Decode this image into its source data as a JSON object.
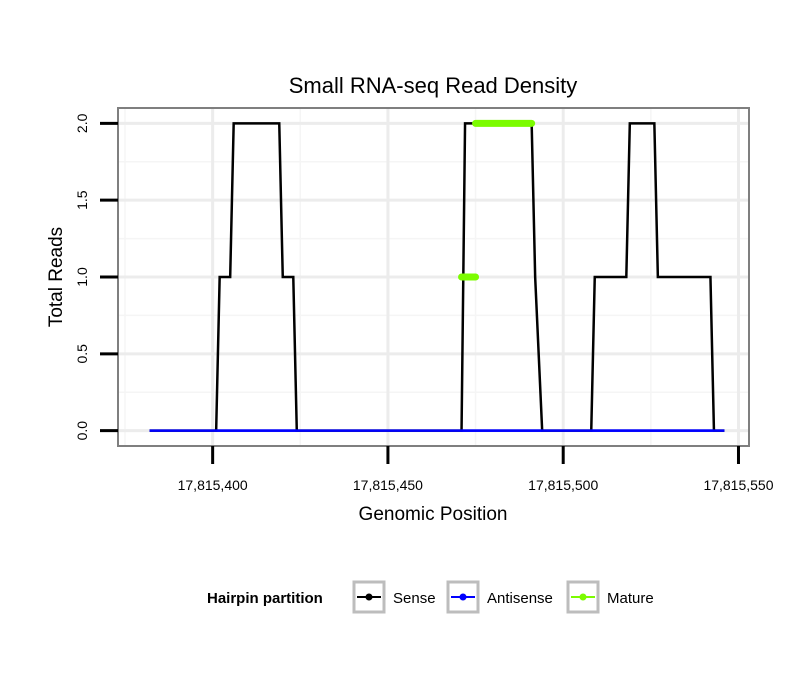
{
  "chart_data": {
    "type": "line",
    "title": "Small RNA-seq Read Density",
    "xlabel": "Genomic Position",
    "ylabel": "Total Reads",
    "xlim": [
      17815373,
      17815553
    ],
    "ylim": [
      -0.1,
      2.1
    ],
    "x_ticks": [
      17815400,
      17815450,
      17815500,
      17815550
    ],
    "x_tick_labels": [
      "17,815,400",
      "17,815,450",
      "17,815,500",
      "17,815,550"
    ],
    "y_ticks": [
      0.0,
      0.5,
      1.0,
      1.5,
      2.0
    ],
    "y_tick_labels": [
      "0.0",
      "0.5",
      "1.0",
      "1.5",
      "2.0"
    ],
    "grid": true,
    "legend": {
      "title": "Hairpin partition",
      "position": "bottom",
      "entries": [
        "Sense",
        "Antisense",
        "Mature"
      ]
    },
    "series": [
      {
        "name": "Sense",
        "color": "#000000",
        "x": [
          17815382,
          17815401,
          17815402,
          17815405,
          17815406,
          17815419,
          17815420,
          17815423,
          17815424,
          17815471,
          17815472,
          17815491,
          17815492,
          17815494,
          17815495,
          17815508,
          17815509,
          17815518,
          17815519,
          17815526,
          17815527,
          17815542,
          17815543,
          17815546
        ],
        "values": [
          0,
          0,
          1,
          1,
          2,
          2,
          1,
          1,
          0,
          0,
          2,
          2,
          1,
          0,
          0,
          0,
          1,
          1,
          2,
          2,
          1,
          1,
          0,
          0
        ]
      },
      {
        "name": "Antisense",
        "color": "#0000ff",
        "x": [
          17815382,
          17815546
        ],
        "values": [
          0,
          0
        ]
      },
      {
        "name": "Mature",
        "color": "#7cfc00",
        "segments": [
          {
            "x": [
              17815471,
              17815475
            ],
            "values": [
              1,
              1
            ]
          },
          {
            "x": [
              17815475,
              17815491
            ],
            "values": [
              2,
              2
            ]
          }
        ]
      }
    ]
  }
}
